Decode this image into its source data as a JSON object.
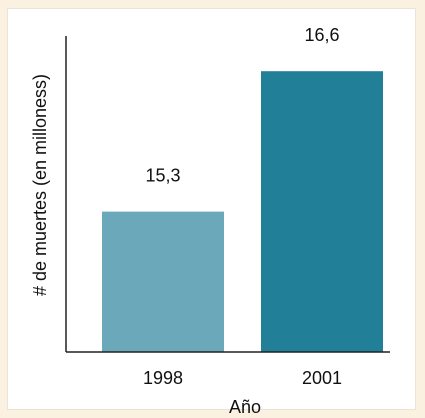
{
  "chart_data": {
    "type": "bar",
    "categories": [
      "1998",
      "2001"
    ],
    "values": [
      15.3,
      16.6
    ],
    "value_labels": [
      "15,3",
      "16,6"
    ],
    "xlabel": "Año",
    "ylabel": "# de muertes (en milloness)",
    "title": "",
    "bar_colors": [
      "#6ba8b9",
      "#227f98"
    ],
    "grid": false,
    "legend": "none"
  },
  "colors": {
    "page_background": "#fbf1e1",
    "panel_background": "#ffffff",
    "axis": "#222222"
  }
}
